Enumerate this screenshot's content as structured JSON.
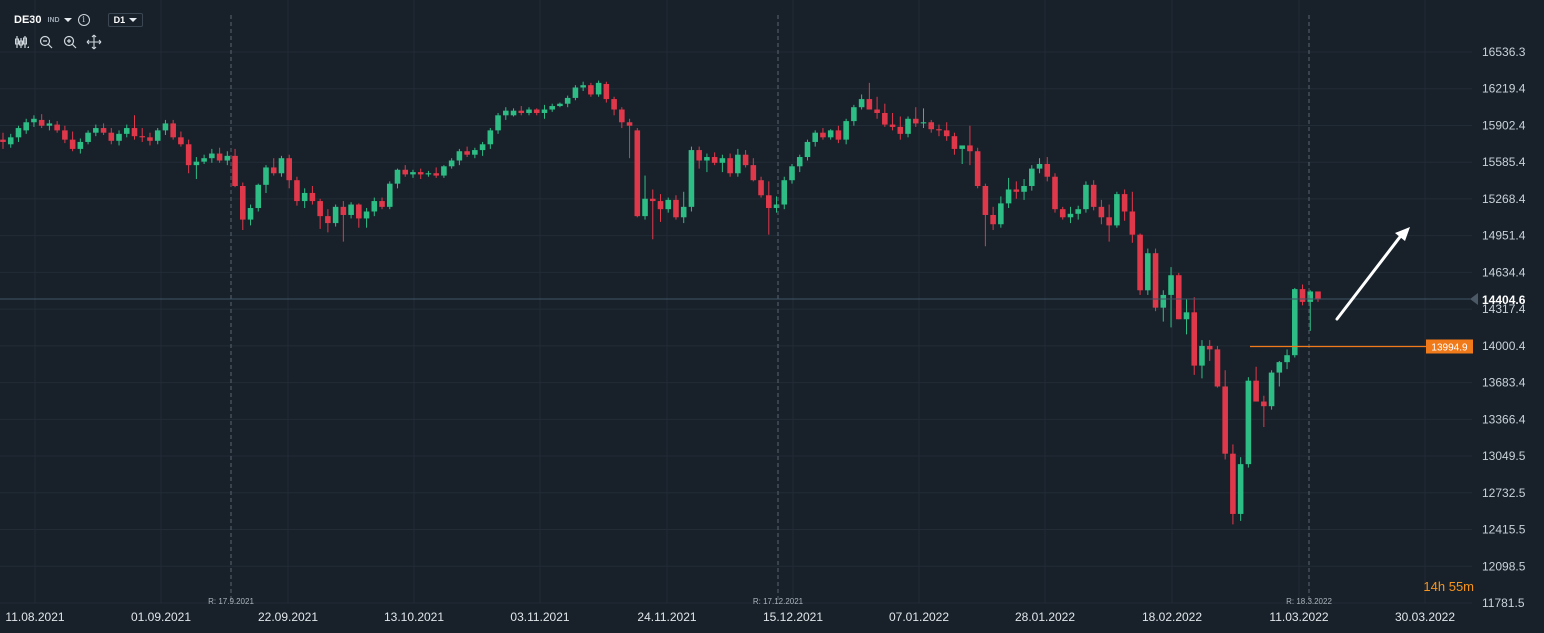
{
  "header": {
    "symbol": "DE30",
    "instrument_type": "IND",
    "timeframe": "D1",
    "tools": [
      "chart-type-icon",
      "zoom-out-icon",
      "zoom-in-icon",
      "crosshair-move-icon"
    ]
  },
  "countdown": "14h 55m",
  "colors": {
    "background": "#18212a",
    "bull": "#2ebd85",
    "bear": "#e0384b",
    "price_line": "#3f5566",
    "level_line": "#f07a1a",
    "arrow": "#ffffff"
  },
  "chart_data": {
    "type": "candlestick",
    "title": "",
    "ylim": [
      11781.5,
      16850
    ],
    "y_ticks": [
      "16536.3",
      "16219.4",
      "15902.4",
      "15585.4",
      "15268.4",
      "14951.4",
      "14634.4",
      "14317.4",
      "14000.4",
      "13683.4",
      "13366.4",
      "13049.5",
      "12732.5",
      "12415.5",
      "12098.5",
      "11781.5"
    ],
    "x_ticks": [
      "11.08.2021",
      "01.09.2021",
      "22.09.2021",
      "13.10.2021",
      "03.11.2021",
      "24.11.2021",
      "15.12.2021",
      "07.01.2022",
      "28.01.2022",
      "18.02.2022",
      "11.03.2022",
      "30.03.2022"
    ],
    "rollover_markers": [
      "R: 17.9.2021",
      "R: 17.12.2021",
      "R: 18.3.2022"
    ],
    "current_price": "14404.6",
    "level": "13994.9",
    "grid": true,
    "candles": [
      [
        15780,
        15840,
        15700,
        15760
      ],
      [
        15740,
        15830,
        15710,
        15800
      ],
      [
        15800,
        15900,
        15760,
        15880
      ],
      [
        15860,
        15960,
        15830,
        15930
      ],
      [
        15930,
        15990,
        15890,
        15960
      ],
      [
        15950,
        16000,
        15880,
        15900
      ],
      [
        15900,
        15950,
        15860,
        15920
      ],
      [
        15910,
        15940,
        15840,
        15860
      ],
      [
        15860,
        15900,
        15750,
        15780
      ],
      [
        15780,
        15850,
        15680,
        15700
      ],
      [
        15700,
        15790,
        15660,
        15760
      ],
      [
        15760,
        15860,
        15740,
        15840
      ],
      [
        15840,
        15910,
        15810,
        15880
      ],
      [
        15880,
        15920,
        15820,
        15840
      ],
      [
        15840,
        15880,
        15740,
        15770
      ],
      [
        15770,
        15860,
        15730,
        15830
      ],
      [
        15830,
        15910,
        15800,
        15880
      ],
      [
        15880,
        15990,
        15780,
        15810
      ],
      [
        15810,
        15880,
        15760,
        15800
      ],
      [
        15800,
        15840,
        15730,
        15770
      ],
      [
        15770,
        15880,
        15740,
        15860
      ],
      [
        15860,
        15950,
        15820,
        15920
      ],
      [
        15920,
        15950,
        15780,
        15800
      ],
      [
        15800,
        15850,
        15720,
        15740
      ],
      [
        15740,
        15780,
        15490,
        15560
      ],
      [
        15560,
        15630,
        15440,
        15590
      ],
      [
        15590,
        15650,
        15570,
        15620
      ],
      [
        15620,
        15700,
        15580,
        15660
      ],
      [
        15660,
        15710,
        15580,
        15600
      ],
      [
        15600,
        15680,
        15560,
        15640
      ],
      [
        15640,
        15700,
        15370,
        15380
      ],
      [
        15380,
        15410,
        15000,
        15090
      ],
      [
        15090,
        15220,
        15040,
        15190
      ],
      [
        15190,
        15400,
        15160,
        15390
      ],
      [
        15390,
        15560,
        15320,
        15540
      ],
      [
        15540,
        15620,
        15470,
        15490
      ],
      [
        15490,
        15640,
        15460,
        15620
      ],
      [
        15620,
        15650,
        15360,
        15430
      ],
      [
        15430,
        15460,
        15210,
        15250
      ],
      [
        15250,
        15360,
        15190,
        15320
      ],
      [
        15320,
        15380,
        15220,
        15250
      ],
      [
        15250,
        15270,
        15010,
        15120
      ],
      [
        15120,
        15180,
        14980,
        15060
      ],
      [
        15060,
        15220,
        15030,
        15200
      ],
      [
        15200,
        15250,
        14900,
        15130
      ],
      [
        15130,
        15240,
        15100,
        15220
      ],
      [
        15220,
        15230,
        15020,
        15100
      ],
      [
        15100,
        15190,
        15020,
        15160
      ],
      [
        15160,
        15280,
        15120,
        15250
      ],
      [
        15250,
        15280,
        15180,
        15200
      ],
      [
        15200,
        15420,
        15180,
        15400
      ],
      [
        15400,
        15530,
        15360,
        15520
      ],
      [
        15520,
        15560,
        15460,
        15480
      ],
      [
        15480,
        15520,
        15450,
        15500
      ],
      [
        15500,
        15530,
        15440,
        15480
      ],
      [
        15480,
        15510,
        15460,
        15490
      ],
      [
        15490,
        15540,
        15450,
        15470
      ],
      [
        15470,
        15560,
        15450,
        15550
      ],
      [
        15550,
        15620,
        15530,
        15600
      ],
      [
        15600,
        15700,
        15560,
        15680
      ],
      [
        15680,
        15720,
        15630,
        15650
      ],
      [
        15650,
        15710,
        15620,
        15690
      ],
      [
        15690,
        15760,
        15640,
        15740
      ],
      [
        15740,
        15880,
        15700,
        15860
      ],
      [
        15860,
        16010,
        15830,
        15990
      ],
      [
        15990,
        16060,
        15950,
        16030
      ],
      [
        15990,
        16050,
        15980,
        16030
      ],
      [
        16030,
        16070,
        15990,
        16010
      ],
      [
        16010,
        16060,
        15990,
        16040
      ],
      [
        16040,
        16050,
        15990,
        16010
      ],
      [
        16010,
        16080,
        15960,
        16040
      ],
      [
        16040,
        16090,
        16020,
        16070
      ],
      [
        16070,
        16100,
        16060,
        16090
      ],
      [
        16090,
        16160,
        16060,
        16140
      ],
      [
        16140,
        16250,
        16120,
        16230
      ],
      [
        16230,
        16280,
        16200,
        16250
      ],
      [
        16250,
        16270,
        16150,
        16170
      ],
      [
        16170,
        16290,
        16150,
        16270
      ],
      [
        16260,
        16280,
        16100,
        16130
      ],
      [
        16130,
        16150,
        15990,
        16040
      ],
      [
        16040,
        16060,
        15880,
        15930
      ],
      [
        15930,
        15960,
        15620,
        15900
      ],
      [
        15860,
        15880,
        15110,
        15120
      ],
      [
        15120,
        15470,
        15090,
        15270
      ],
      [
        15270,
        15350,
        14920,
        15250
      ],
      [
        15250,
        15310,
        15070,
        15180
      ],
      [
        15180,
        15280,
        15150,
        15260
      ],
      [
        15260,
        15300,
        15090,
        15110
      ],
      [
        15110,
        15330,
        15060,
        15200
      ],
      [
        15200,
        15720,
        15160,
        15690
      ],
      [
        15690,
        15720,
        15530,
        15600
      ],
      [
        15600,
        15660,
        15500,
        15630
      ],
      [
        15630,
        15670,
        15560,
        15580
      ],
      [
        15580,
        15650,
        15500,
        15620
      ],
      [
        15620,
        15660,
        15460,
        15490
      ],
      [
        15490,
        15700,
        15460,
        15650
      ],
      [
        15650,
        15690,
        15540,
        15560
      ],
      [
        15560,
        15620,
        15420,
        15430
      ],
      [
        15430,
        15460,
        15280,
        15300
      ],
      [
        15300,
        15420,
        14960,
        15190
      ],
      [
        15190,
        15290,
        15150,
        15220
      ],
      [
        15220,
        15460,
        15180,
        15430
      ],
      [
        15430,
        15570,
        15400,
        15550
      ],
      [
        15550,
        15650,
        15500,
        15630
      ],
      [
        15630,
        15780,
        15600,
        15760
      ],
      [
        15760,
        15860,
        15720,
        15840
      ],
      [
        15840,
        15880,
        15780,
        15800
      ],
      [
        15800,
        15870,
        15780,
        15860
      ],
      [
        15860,
        15900,
        15750,
        15780
      ],
      [
        15780,
        15960,
        15740,
        15940
      ],
      [
        15940,
        16080,
        15900,
        16060
      ],
      [
        16060,
        16170,
        16040,
        16130
      ],
      [
        16130,
        16270,
        16080,
        16040
      ],
      [
        16040,
        16150,
        15960,
        16010
      ],
      [
        16010,
        16090,
        15890,
        15910
      ],
      [
        15910,
        16010,
        15860,
        15890
      ],
      [
        15890,
        15980,
        15780,
        15830
      ],
      [
        15830,
        15980,
        15800,
        15960
      ],
      [
        15960,
        16060,
        15890,
        15920
      ],
      [
        15920,
        16050,
        15880,
        15930
      ],
      [
        15930,
        15950,
        15840,
        15870
      ],
      [
        15870,
        15910,
        15810,
        15860
      ],
      [
        15860,
        15930,
        15770,
        15810
      ],
      [
        15810,
        15840,
        15650,
        15700
      ],
      [
        15700,
        15720,
        15570,
        15730
      ],
      [
        15730,
        15900,
        15560,
        15680
      ],
      [
        15680,
        15710,
        15360,
        15380
      ],
      [
        15380,
        15400,
        14860,
        15130
      ],
      [
        15130,
        15200,
        15000,
        15050
      ],
      [
        15050,
        15290,
        15020,
        15230
      ],
      [
        15230,
        15450,
        15190,
        15350
      ],
      [
        15350,
        15420,
        15270,
        15330
      ],
      [
        15330,
        15440,
        15260,
        15380
      ],
      [
        15380,
        15560,
        15340,
        15530
      ],
      [
        15530,
        15620,
        15490,
        15570
      ],
      [
        15570,
        15630,
        15420,
        15460
      ],
      [
        15460,
        15490,
        15150,
        15180
      ],
      [
        15180,
        15200,
        15090,
        15110
      ],
      [
        15110,
        15200,
        15060,
        15140
      ],
      [
        15140,
        15210,
        15090,
        15180
      ],
      [
        15180,
        15420,
        15150,
        15390
      ],
      [
        15390,
        15430,
        15170,
        15200
      ],
      [
        15200,
        15260,
        15050,
        15110
      ],
      [
        15110,
        15220,
        14900,
        15040
      ],
      [
        15040,
        15330,
        15020,
        15310
      ],
      [
        15310,
        15350,
        15080,
        15160
      ],
      [
        15160,
        15330,
        14890,
        14960
      ],
      [
        14960,
        14970,
        14440,
        14480
      ],
      [
        14480,
        14840,
        14440,
        14800
      ],
      [
        14800,
        14840,
        14300,
        14330
      ],
      [
        14330,
        14480,
        14210,
        14440
      ],
      [
        14440,
        14680,
        14160,
        14610
      ],
      [
        14610,
        14630,
        14230,
        14230
      ],
      [
        14230,
        14400,
        14100,
        14290
      ],
      [
        14290,
        14420,
        13750,
        13830
      ],
      [
        13830,
        14050,
        13720,
        14000
      ],
      [
        14000,
        14050,
        13870,
        13970
      ],
      [
        13970,
        14000,
        13640,
        13650
      ],
      [
        13650,
        13790,
        13020,
        13070
      ],
      [
        13070,
        13150,
        12460,
        12550
      ],
      [
        12550,
        13040,
        12490,
        12980
      ],
      [
        12980,
        13730,
        12950,
        13700
      ],
      [
        13700,
        13820,
        13560,
        13520
      ],
      [
        13520,
        13570,
        13300,
        13480
      ],
      [
        13480,
        13790,
        13450,
        13770
      ],
      [
        13770,
        13870,
        13650,
        13860
      ],
      [
        13860,
        13970,
        13800,
        13920
      ],
      [
        13920,
        14500,
        13900,
        14490
      ],
      [
        14490,
        14530,
        14350,
        14380
      ],
      [
        14380,
        14480,
        14130,
        14470
      ],
      [
        14470,
        14470,
        14380,
        14400
      ]
    ]
  }
}
